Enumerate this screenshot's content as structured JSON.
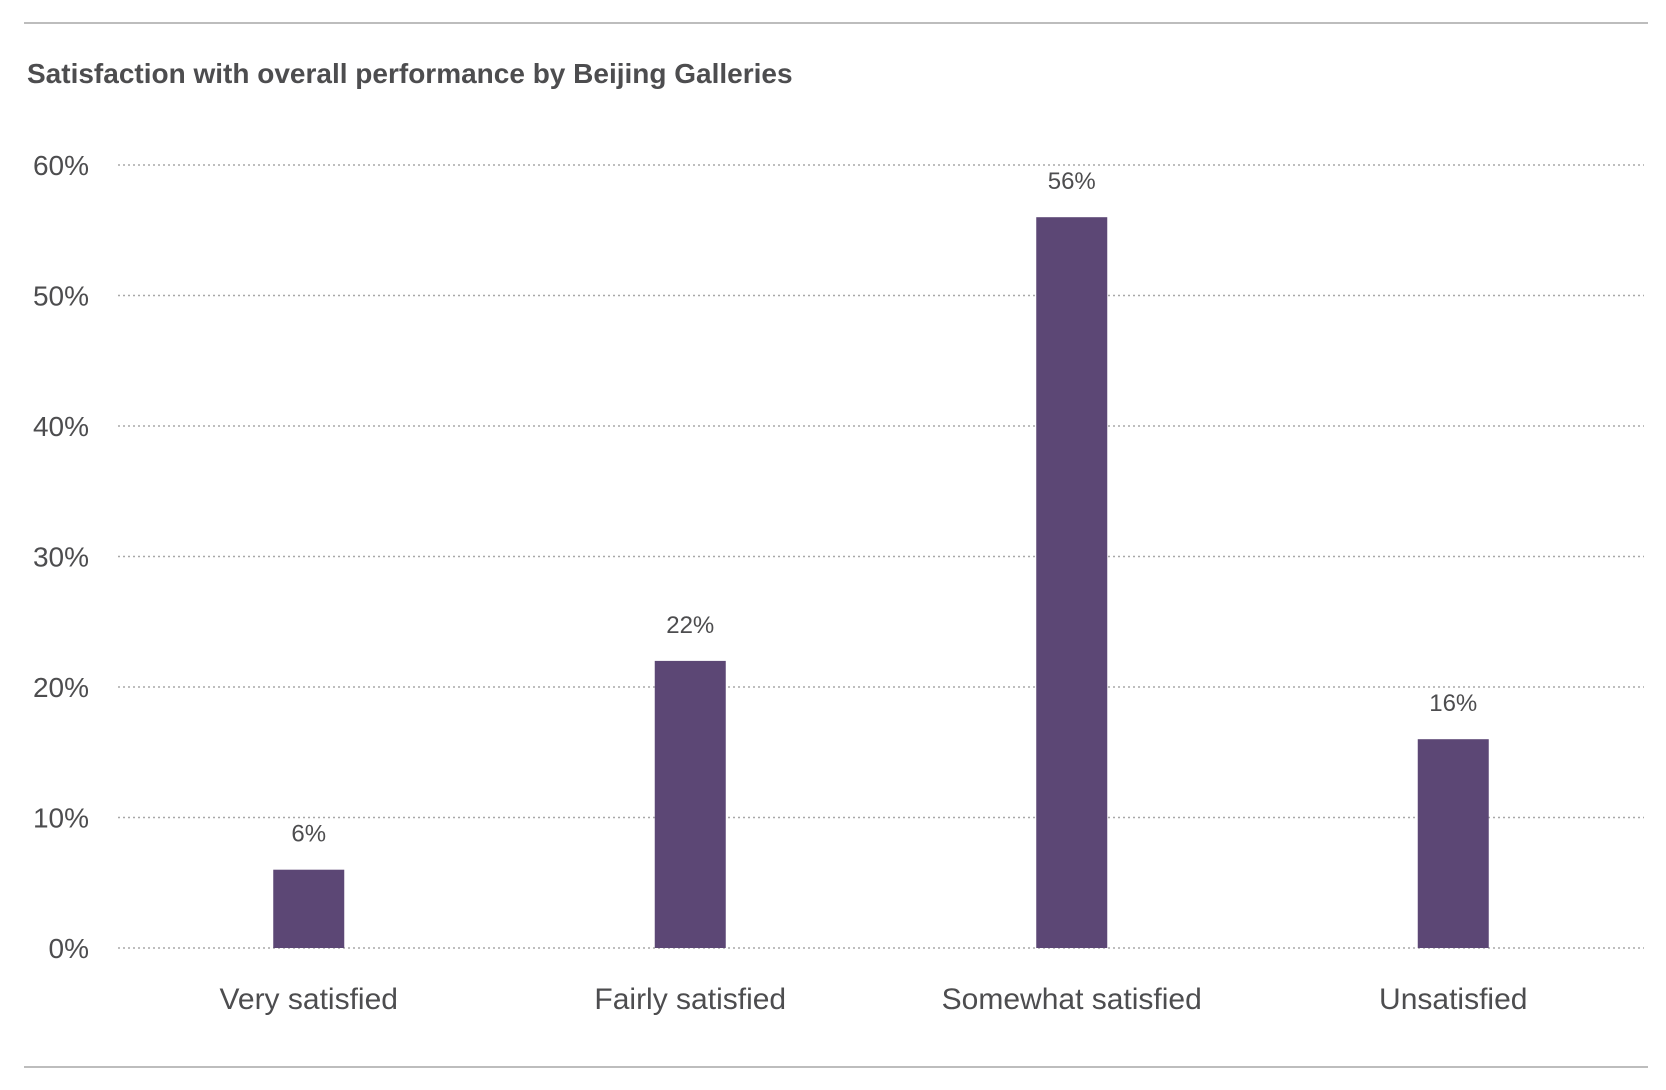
{
  "colors": {
    "bar": "#5c4775",
    "text": "#4d4d4f",
    "grid": "#a8a8a8",
    "rule": "#bdbdbd"
  },
  "chart_data": {
    "type": "bar",
    "title": "Satisfaction with overall performance by Beijing Galleries",
    "xlabel": "",
    "ylabel": "",
    "categories": [
      "Very satisfied",
      "Fairly satisfied",
      "Somewhat satisfied",
      "Unsatisfied"
    ],
    "values": [
      6,
      22,
      56,
      16
    ],
    "data_labels": [
      "6%",
      "22%",
      "56%",
      "16%"
    ],
    "ylim": [
      0,
      60
    ],
    "yticks": [
      0,
      10,
      20,
      30,
      40,
      50,
      60
    ],
    "ytick_labels": [
      "0%",
      "10%",
      "20%",
      "30%",
      "40%",
      "50%",
      "60%"
    ],
    "grid": true,
    "grid_style": "dotted",
    "legend": "none"
  }
}
